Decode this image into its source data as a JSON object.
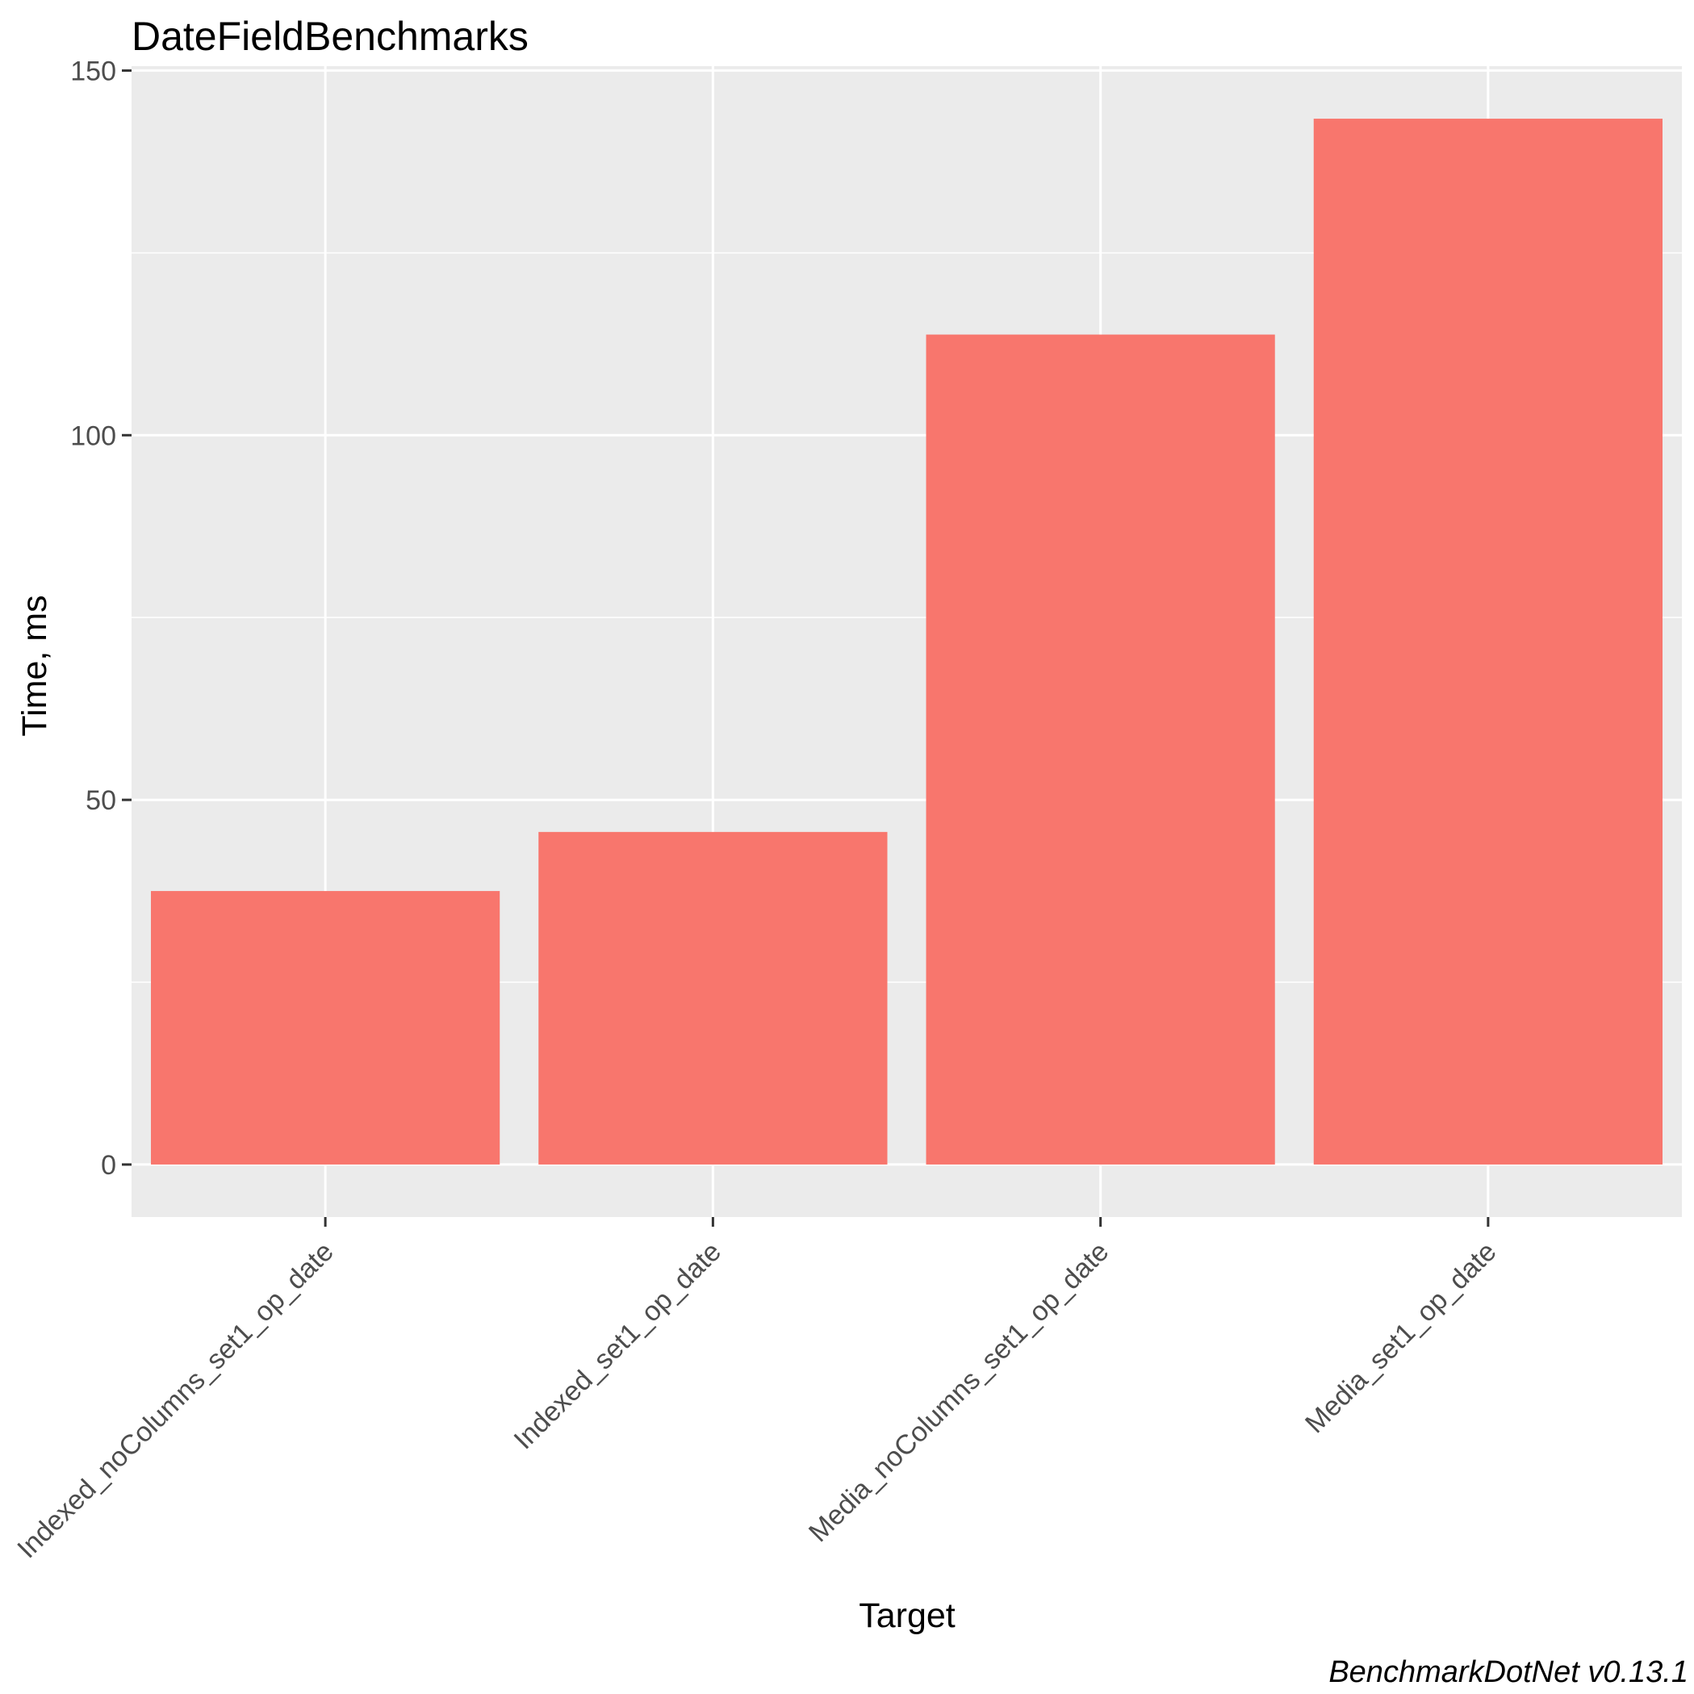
{
  "chart_data": {
    "type": "bar",
    "title": "DateFieldBenchmarks",
    "xlabel": "Target",
    "ylabel": "Time, ms",
    "caption": "BenchmarkDotNet v0.13.1",
    "categories": [
      "Indexed_noColumns_set1_op_date",
      "Indexed_set1_op_date",
      "Media_noColumns_set1_op_date",
      "Media_set1_op_date"
    ],
    "values": [
      37.5,
      45.6,
      113.8,
      143.4
    ],
    "ylim": [
      -7.2,
      150.6
    ],
    "yticks": [
      0,
      50,
      100,
      150
    ],
    "ytick_labels": [
      "0",
      "50",
      "100",
      "150"
    ],
    "grid": true,
    "legend": "none",
    "colors": {
      "bar": "#F8766D",
      "panel": "#EBEBEB",
      "grid": "#FFFFFF",
      "tick": "#333333"
    }
  }
}
